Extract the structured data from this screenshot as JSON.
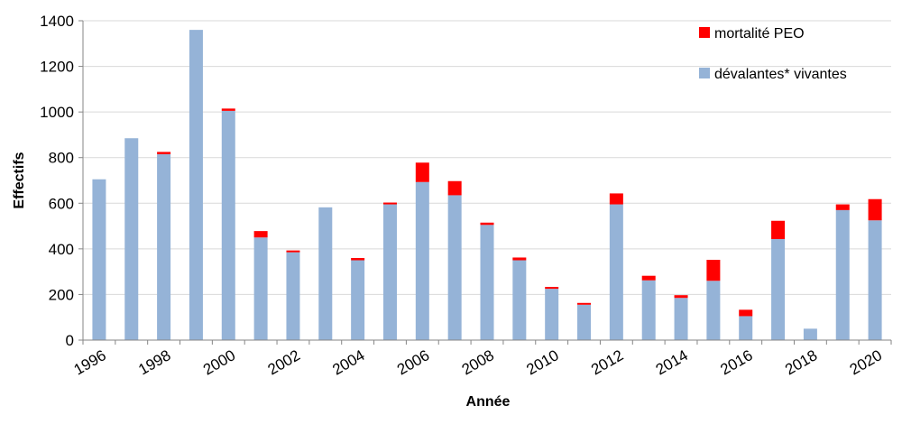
{
  "chart_data": {
    "type": "bar",
    "stacked": true,
    "xlabel": "Année",
    "ylabel": "Effectifs",
    "ylim": [
      0,
      1400
    ],
    "yticks": [
      0,
      200,
      400,
      600,
      800,
      1000,
      1200,
      1400
    ],
    "grid": true,
    "legend_position": "top-right",
    "years": [
      1996,
      1997,
      1998,
      1999,
      2000,
      2001,
      2002,
      2003,
      2004,
      2005,
      2006,
      2007,
      2008,
      2009,
      2010,
      2011,
      2012,
      2013,
      2014,
      2015,
      2016,
      2017,
      2018,
      2019,
      2020
    ],
    "xtick_labels": [
      "1996",
      "1998",
      "2000",
      "2002",
      "2004",
      "2006",
      "2008",
      "2010",
      "2012",
      "2014",
      "2016",
      "2018",
      "2020"
    ],
    "series": [
      {
        "name": "dévalantes* vivantes",
        "color": "#95b3d7",
        "values": [
          705,
          885,
          815,
          1360,
          1005,
          450,
          385,
          582,
          350,
          595,
          693,
          635,
          505,
          350,
          225,
          155,
          595,
          262,
          185,
          260,
          105,
          443,
          50,
          570,
          525
        ]
      },
      {
        "name": "mortalité PEO",
        "color": "#ff0000",
        "values": [
          0,
          0,
          10,
          0,
          10,
          28,
          8,
          0,
          10,
          8,
          85,
          62,
          10,
          12,
          8,
          8,
          48,
          20,
          12,
          92,
          28,
          80,
          0,
          25,
          93
        ]
      }
    ]
  }
}
